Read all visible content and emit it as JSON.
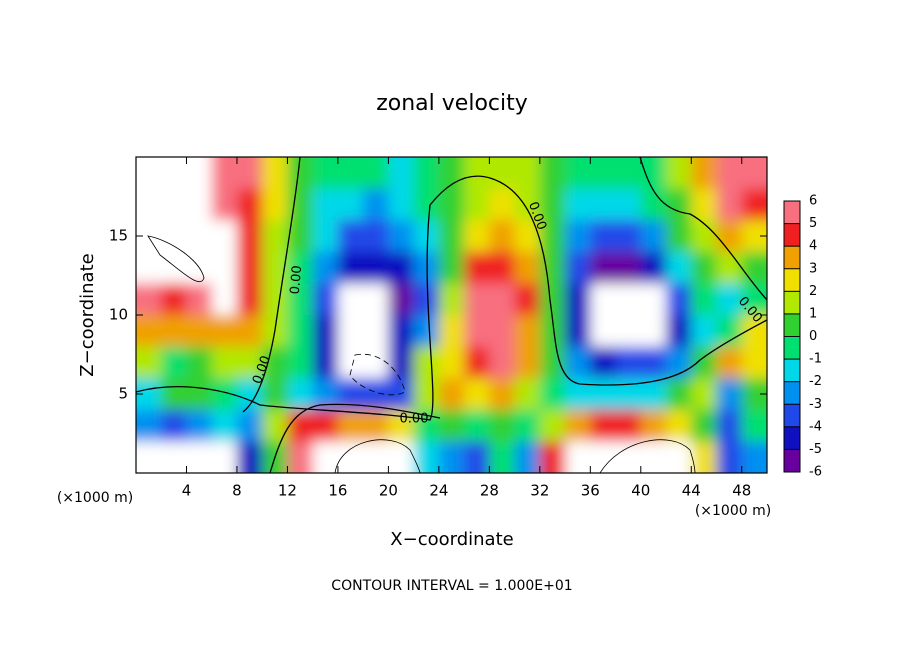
{
  "chart_data": {
    "type": "contour",
    "title": "zonal velocity",
    "xlabel": "X−coordinate",
    "ylabel": "Z−coordinate",
    "x_unit": "(×1000 m)",
    "footer": "CONTOUR INTERVAL = 1.000E+01",
    "contour_labels": [
      "0.00",
      "0.00",
      "0.00",
      "0.00",
      "0.00"
    ],
    "xlim": [
      0,
      50
    ],
    "ylim": [
      0,
      20
    ],
    "xticks": [
      4,
      8,
      12,
      16,
      20,
      24,
      28,
      32,
      36,
      40,
      44,
      48
    ],
    "yticks": [
      5,
      10,
      15
    ],
    "x": [
      1,
      3,
      5,
      7,
      9,
      11,
      13,
      15,
      17,
      19,
      21,
      23,
      25,
      27,
      29,
      31,
      33,
      35,
      37,
      39,
      41,
      43,
      45,
      47,
      49
    ],
    "z": [
      19,
      17,
      15,
      13,
      11,
      9,
      7,
      5,
      3,
      1
    ],
    "values": [
      [
        8,
        8,
        8,
        6,
        5,
        2,
        0,
        -1,
        -1,
        -1,
        -2,
        -1,
        0,
        1,
        1,
        1,
        0,
        -1,
        -1,
        -1,
        -1,
        1,
        3,
        6,
        5
      ],
      [
        8,
        8,
        8,
        6,
        4,
        2,
        0,
        -2,
        -2,
        -3,
        -2,
        -1,
        0,
        1,
        2,
        1,
        0,
        -2,
        -2,
        -2,
        -1,
        0,
        2,
        5,
        4
      ],
      [
        8,
        8,
        8,
        7,
        4,
        1,
        0,
        -2,
        -4,
        -4,
        -3,
        -2,
        0,
        2,
        3,
        2,
        0,
        -3,
        -4,
        -4,
        -3,
        0,
        1,
        3,
        2
      ],
      [
        8,
        8,
        8,
        8,
        4,
        1,
        -1,
        -3,
        -5,
        -5,
        -5,
        -3,
        0,
        4,
        4,
        3,
        0,
        -4,
        -6,
        -6,
        -5,
        -2,
        0,
        1,
        0
      ],
      [
        5,
        4,
        5,
        7,
        4,
        1,
        -1,
        -4,
        -8,
        -8,
        -6,
        -4,
        1,
        5,
        5,
        4,
        0,
        -5,
        -8,
        -8,
        -7,
        -4,
        -1,
        -2,
        -1
      ],
      [
        3,
        3,
        3,
        3,
        3,
        1,
        -1,
        -5,
        -8,
        -8,
        -5,
        -3,
        2,
        5,
        5,
        3,
        0,
        -5,
        -8,
        -8,
        -7,
        -5,
        -2,
        -1,
        2
      ],
      [
        1,
        -1,
        0,
        1,
        1,
        0,
        -1,
        -5,
        -8,
        -8,
        -5,
        1,
        2,
        4,
        5,
        3,
        0,
        -3,
        -5,
        -4,
        -4,
        -3,
        0,
        3,
        2
      ],
      [
        -2,
        0,
        0,
        -1,
        -2,
        0,
        -2,
        -3,
        -4,
        -4,
        -4,
        1,
        3,
        2,
        3,
        1,
        -1,
        -2,
        -2,
        -2,
        -2,
        0,
        1,
        -3,
        0
      ],
      [
        -3,
        -4,
        -3,
        -2,
        -3,
        1,
        4,
        4,
        3,
        3,
        2,
        -1,
        0,
        -1,
        0,
        -1,
        1,
        3,
        4,
        4,
        3,
        2,
        0,
        -4,
        -1
      ],
      [
        -8,
        -8,
        -8,
        -8,
        -5,
        0,
        5,
        8,
        8,
        8,
        8,
        -2,
        -3,
        -4,
        -1,
        -3,
        4,
        8,
        8,
        8,
        8,
        8,
        2,
        -4,
        -3
      ]
    ],
    "colorbar": {
      "ticks": [
        -6,
        -5,
        -4,
        -3,
        -2,
        -1,
        0,
        1,
        2,
        3,
        4,
        5,
        6
      ],
      "colors": [
        "#6800a0",
        "#1010c0",
        "#2048e8",
        "#0090f0",
        "#00d8e8",
        "#00e070",
        "#30d030",
        "#b0e800",
        "#f0e000",
        "#f0a000",
        "#f02020",
        "#f87080"
      ]
    }
  }
}
